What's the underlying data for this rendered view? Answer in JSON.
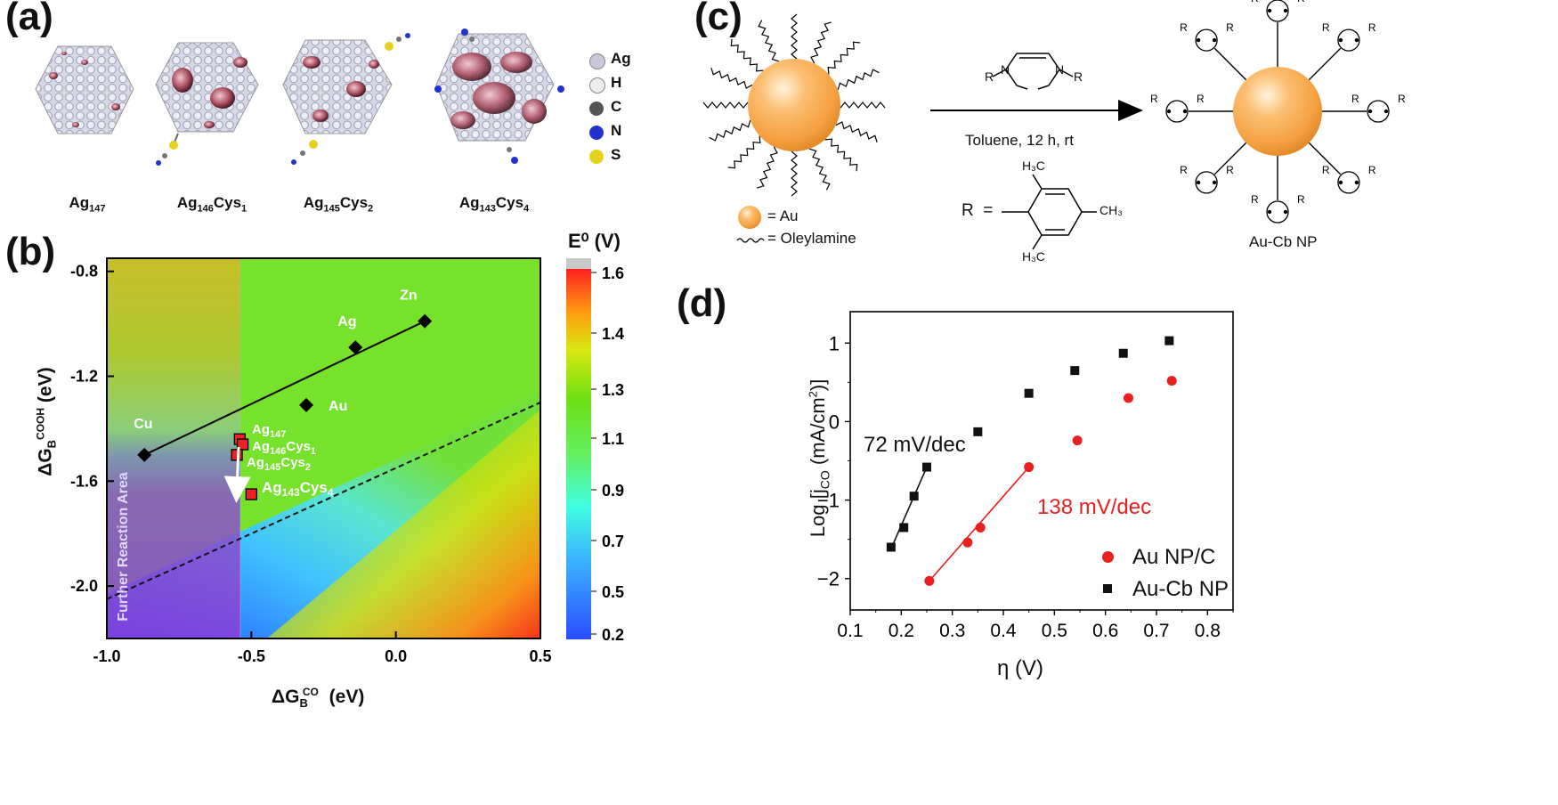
{
  "panel_a": {
    "label": "(a)",
    "clusters": [
      {
        "name": "Ag",
        "sub": "147",
        "tail": ""
      },
      {
        "name": "Ag",
        "sub": "146",
        "tail": "Cys",
        "sub2": "1"
      },
      {
        "name": "Ag",
        "sub": "145",
        "tail": "Cys",
        "sub2": "2"
      },
      {
        "name": "Ag",
        "sub": "143",
        "tail": "Cys",
        "sub2": "4"
      }
    ],
    "legend": [
      {
        "label": "Ag",
        "color": "#c8c8d8"
      },
      {
        "label": "H",
        "color": "#e8e8e8"
      },
      {
        "label": "C",
        "color": "#555555"
      },
      {
        "label": "N",
        "color": "#2233cc"
      },
      {
        "label": "S",
        "color": "#e6d21e"
      }
    ]
  },
  "panel_b": {
    "label": "(b)",
    "colorbar_title": "E⁰ (V)",
    "colorbar_ticks": [
      "1.6",
      "1.4",
      "1.3",
      "1.1",
      "0.9",
      "0.7",
      "0.5",
      "0.2"
    ],
    "xlabel_main": "ΔG",
    "xlabel_sub": "B",
    "xlabel_sup": "CO",
    "xlabel_unit": " (eV)",
    "ylabel_main": "ΔG",
    "ylabel_sub": "B",
    "ylabel_sup": "COOH",
    "ylabel_unit": " (eV)",
    "region_label": "Further Reaction Area",
    "xticks": [
      "-1.0",
      "-0.5",
      "0.0",
      "0.5"
    ],
    "yticks": [
      "-0.8",
      "-1.2",
      "-1.6",
      "-2.0"
    ]
  },
  "panel_c": {
    "label": "(c)",
    "legend_au": "= Au",
    "legend_oleyl": "= Oleylamine",
    "condition": "Toluene, 12 h, rt",
    "r_def": "R  =",
    "product": "Au-Cb NP",
    "carbene_r": "R",
    "ch3": "CH₃",
    "h3c": "H₃C",
    "n": "N"
  },
  "panel_d": {
    "label": "(d)",
    "ylabel": "Log [j",
    "ylabel_sub": "CO",
    "ylabel_tail": " (mA/cm",
    "ylabel_sup": "2",
    "ylabel_end": ")]",
    "xlabel": "η (V)",
    "slope_black": "72 mV/dec",
    "slope_red": "138 mV/dec",
    "legend": [
      {
        "label": "Au NP/C",
        "color": "#e82020"
      },
      {
        "label": "Au-Cb NP",
        "color": "#111111"
      }
    ]
  },
  "chart_data": [
    {
      "type": "scatter",
      "panel": "b",
      "title": "",
      "xlabel": "ΔG_B^CO (eV)",
      "ylabel": "ΔG_B^COOH (eV)",
      "xlim": [
        -1.0,
        0.5
      ],
      "ylim": [
        -2.2,
        -0.75
      ],
      "colorbar": {
        "label": "E⁰ (V)",
        "range": [
          0.2,
          1.6
        ]
      },
      "series": [
        {
          "name": "metals",
          "marker": "diamond",
          "color": "#000000",
          "points": [
            {
              "label": "Cu",
              "x": -0.87,
              "y": -1.5
            },
            {
              "label": "Ag",
              "x": -0.14,
              "y": -1.09
            },
            {
              "label": "Au",
              "x": -0.31,
              "y": -1.31
            },
            {
              "label": "Zn",
              "x": 0.1,
              "y": -0.99
            }
          ]
        },
        {
          "name": "clusters",
          "marker": "square",
          "color": "#ee2222",
          "points": [
            {
              "label": "Ag147",
              "x": -0.54,
              "y": -1.44
            },
            {
              "label": "Ag146Cys1",
              "x": -0.53,
              "y": -1.46
            },
            {
              "label": "Ag145Cys2",
              "x": -0.55,
              "y": -1.5
            },
            {
              "label": "Ag143Cys4",
              "x": -0.5,
              "y": -1.65
            }
          ]
        }
      ],
      "fit_line": {
        "x": [
          -0.87,
          0.1
        ],
        "y": [
          -1.5,
          -0.99
        ]
      },
      "dashed_line": {
        "x": [
          -1.0,
          0.5
        ],
        "y": [
          -2.05,
          -1.3
        ]
      }
    },
    {
      "type": "scatter",
      "panel": "d",
      "title": "",
      "xlabel": "η (V)",
      "ylabel": "Log [jCO (mA/cm2)]",
      "xlim": [
        0.1,
        0.85
      ],
      "ylim": [
        -2.4,
        1.4
      ],
      "xticks": [
        "0.1",
        "0.2",
        "0.3",
        "0.4",
        "0.5",
        "0.6",
        "0.7",
        "0.8"
      ],
      "yticks": [
        "1",
        "0",
        "-1",
        "-2"
      ],
      "series": [
        {
          "name": "Au NP/C",
          "color": "#e82020",
          "marker": "circle",
          "x": [
            0.255,
            0.33,
            0.355,
            0.45,
            0.545,
            0.645,
            0.73
          ],
          "y": [
            -2.03,
            -1.54,
            -1.35,
            -0.58,
            -0.24,
            0.3,
            0.52
          ]
        },
        {
          "name": "Au-Cb NP",
          "color": "#111111",
          "marker": "square",
          "x": [
            0.18,
            0.205,
            0.225,
            0.25,
            0.35,
            0.45,
            0.54,
            0.635,
            0.725
          ],
          "y": [
            -1.6,
            -1.35,
            -0.95,
            -0.58,
            -0.13,
            0.36,
            0.65,
            0.87,
            1.03
          ]
        }
      ],
      "fits": [
        {
          "series": "Au-Cb NP",
          "label": "72 mV/dec",
          "x": [
            0.18,
            0.25
          ],
          "y": [
            -1.62,
            -0.58
          ]
        },
        {
          "series": "Au NP/C",
          "label": "138 mV/dec",
          "x": [
            0.255,
            0.45
          ],
          "y": [
            -2.03,
            -0.58
          ]
        }
      ]
    }
  ]
}
